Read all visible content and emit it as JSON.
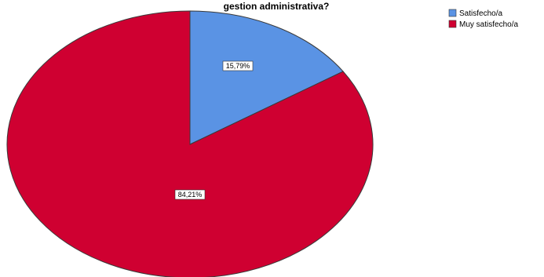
{
  "chart_data": {
    "type": "pie",
    "title": "gestion administrativa?",
    "categories": [
      "Satisfecho/a",
      "Muy satisfecho/a"
    ],
    "values": [
      15.79,
      84.21
    ],
    "value_labels": [
      "15,79%",
      "84,21%"
    ],
    "colors": [
      "#5A93E4",
      "#CF0031"
    ],
    "legend_position": "top-right"
  }
}
